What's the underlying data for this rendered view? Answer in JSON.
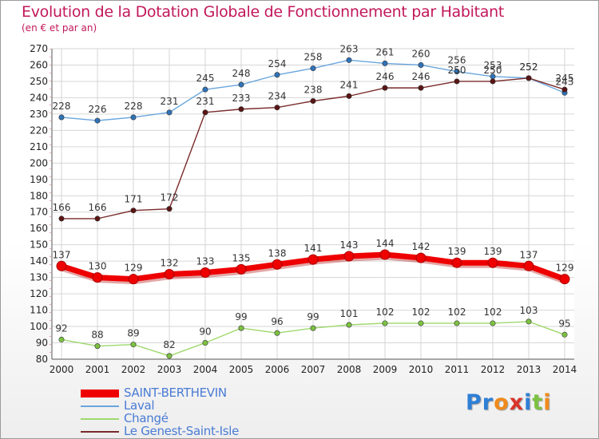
{
  "header": {
    "title": "Evolution de la Dotation Globale de Fonctionnement par Habitant",
    "subtitle": "(en € et par an)"
  },
  "logo": {
    "text": "Proxiti",
    "letters": [
      {
        "ch": "P",
        "color": "#2e7fd6"
      },
      {
        "ch": "r",
        "color": "#2e7fd6"
      },
      {
        "ch": "o",
        "color": "#f08a1c"
      },
      {
        "ch": "x",
        "color": "#d9342b"
      },
      {
        "ch": "i",
        "color": "#2e7fd6"
      },
      {
        "ch": "t",
        "color": "#7cc242"
      },
      {
        "ch": "i",
        "color": "#f08a1c"
      }
    ]
  },
  "chart_data": {
    "type": "line",
    "title": "Evolution de la Dotation Globale de Fonctionnement par Habitant",
    "subtitle": "(en € et par an)",
    "xlabel": "",
    "ylabel": "",
    "ylim": [
      80,
      270
    ],
    "yticks": [
      80,
      90,
      100,
      110,
      120,
      130,
      140,
      150,
      160,
      170,
      180,
      190,
      200,
      210,
      220,
      230,
      240,
      250,
      260,
      270
    ],
    "grid": true,
    "legend_position": "bottom-left",
    "categories": [
      "2000",
      "2001",
      "2002",
      "2003",
      "2004",
      "2005",
      "2006",
      "2007",
      "2008",
      "2009",
      "2010",
      "2011",
      "2012",
      "2013",
      "2014"
    ],
    "series": [
      {
        "name": "SAINT-BERTHEVIN",
        "color": "#ee0000",
        "point_color": "#ee0000",
        "emphasis": true,
        "values": [
          137,
          130,
          129,
          132,
          133,
          135,
          138,
          141,
          143,
          144,
          142,
          139,
          139,
          137,
          129
        ]
      },
      {
        "name": "Laval",
        "color": "#6aa6dd",
        "point_color": "#2f73b8",
        "emphasis": false,
        "values": [
          228,
          226,
          228,
          231,
          245,
          248,
          254,
          258,
          263,
          261,
          260,
          256,
          253,
          252,
          243
        ]
      },
      {
        "name": "Changé",
        "color": "#9ed86c",
        "point_color": "#7cc242",
        "emphasis": false,
        "values": [
          92,
          88,
          89,
          82,
          90,
          99,
          96,
          99,
          101,
          102,
          102,
          102,
          102,
          103,
          95
        ]
      },
      {
        "name": "Le Genest-Saint-Isle",
        "color": "#7a2a2a",
        "point_color": "#5a1414",
        "emphasis": false,
        "values": [
          166,
          166,
          171,
          172,
          231,
          233,
          234,
          238,
          241,
          246,
          246,
          250,
          250,
          252,
          245
        ]
      }
    ]
  }
}
